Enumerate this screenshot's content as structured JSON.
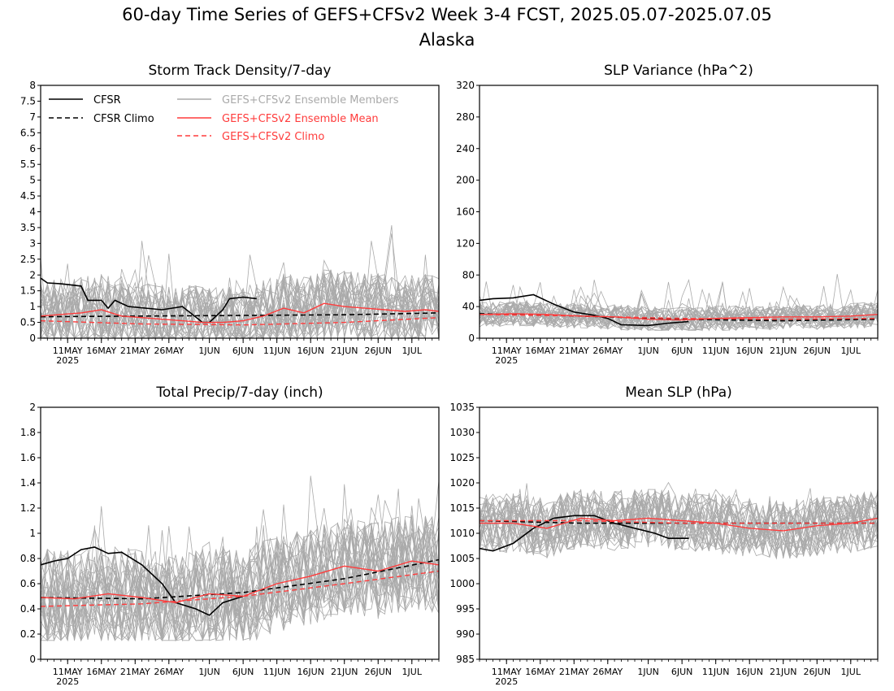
{
  "figure": {
    "title_line1": "60-day Time Series of GEFS+CFSv2 Week 3-4 FCST, 2025.05.07-2025.07.05",
    "title_line2": "Alaska"
  },
  "legend": {
    "cfsr": "CFSR",
    "cfsr_climo": "CFSR Climo",
    "members": "GEFS+CFSv2 Ensemble Members",
    "mean": "GEFS+CFSv2 Ensemble Mean",
    "climo": "GEFS+CFSv2 Climo"
  },
  "colors": {
    "cfsr": "#000000",
    "members": "#aaaaaa",
    "mean": "#ff3c3c",
    "climo": "#ff3c3c"
  },
  "x_axis": {
    "start_date": "2025-05-07",
    "end_date": "2025-07-05",
    "tick_labels": [
      "11MAY",
      "16MAY",
      "21MAY",
      "26MAY",
      "1JUN",
      "6JUN",
      "11JUN",
      "16JUN",
      "21JUN",
      "26JUN",
      "1JUL"
    ],
    "tick_dates": [
      "2025-05-11",
      "2025-05-16",
      "2025-05-21",
      "2025-05-26",
      "2025-06-01",
      "2025-06-06",
      "2025-06-11",
      "2025-06-16",
      "2025-06-21",
      "2025-06-26",
      "2025-07-01"
    ],
    "year_label": "2025"
  },
  "chart_data": [
    {
      "type": "line",
      "title": "Storm Track Density/7-day",
      "ylim": [
        0,
        8
      ],
      "yticks": [
        0,
        0.5,
        1,
        1.5,
        2,
        2.5,
        3,
        3.5,
        4,
        4.5,
        5,
        5.5,
        6,
        6.5,
        7,
        7.5,
        8
      ],
      "members_envelope": {
        "low": 0.0,
        "high_typical": 2.5,
        "peak": 4.3
      },
      "series": [
        {
          "name": "CFSR",
          "x": [
            "2025-05-07",
            "2025-05-08",
            "2025-05-10",
            "2025-05-13",
            "2025-05-14",
            "2025-05-16",
            "2025-05-17",
            "2025-05-18",
            "2025-05-20",
            "2025-05-25",
            "2025-05-28",
            "2025-05-31",
            "2025-06-01",
            "2025-06-03",
            "2025-06-04",
            "2025-06-06",
            "2025-06-08"
          ],
          "values": [
            1.9,
            1.75,
            1.72,
            1.65,
            1.2,
            1.2,
            0.95,
            1.2,
            1.0,
            0.9,
            1.0,
            0.5,
            0.5,
            0.9,
            1.25,
            1.3,
            1.25
          ]
        },
        {
          "name": "CFSR Climo",
          "x": [
            "2025-05-07",
            "2025-05-22",
            "2025-06-06",
            "2025-06-21",
            "2025-07-05"
          ],
          "values": [
            0.68,
            0.7,
            0.72,
            0.74,
            0.8
          ]
        },
        {
          "name": "GEFS+CFSv2 Ensemble Mean",
          "x": [
            "2025-05-07",
            "2025-05-10",
            "2025-05-13",
            "2025-05-16",
            "2025-05-19",
            "2025-05-22",
            "2025-05-25",
            "2025-05-28",
            "2025-05-31",
            "2025-06-03",
            "2025-06-06",
            "2025-06-09",
            "2025-06-12",
            "2025-06-15",
            "2025-06-18",
            "2025-06-21",
            "2025-06-24",
            "2025-06-27",
            "2025-06-30",
            "2025-07-03",
            "2025-07-05"
          ],
          "values": [
            0.7,
            0.75,
            0.8,
            0.9,
            0.7,
            0.65,
            0.6,
            0.55,
            0.5,
            0.5,
            0.55,
            0.7,
            0.95,
            0.8,
            1.1,
            1.0,
            0.95,
            0.9,
            0.85,
            0.9,
            0.85
          ]
        },
        {
          "name": "GEFS+CFSv2 Climo",
          "x": [
            "2025-05-07",
            "2025-05-22",
            "2025-06-06",
            "2025-06-21",
            "2025-07-05"
          ],
          "values": [
            0.55,
            0.45,
            0.42,
            0.5,
            0.65
          ]
        }
      ]
    },
    {
      "type": "line",
      "title": "SLP Variance (hPa^2)",
      "ylim": [
        0,
        320
      ],
      "yticks": [
        0,
        40,
        80,
        120,
        160,
        200,
        240,
        280,
        320
      ],
      "members_envelope": {
        "low": 10,
        "high_typical": 45,
        "peak": 85
      },
      "series": [
        {
          "name": "CFSR",
          "x": [
            "2025-05-07",
            "2025-05-09",
            "2025-05-12",
            "2025-05-15",
            "2025-05-18",
            "2025-05-21",
            "2025-05-24",
            "2025-05-26",
            "2025-05-28",
            "2025-06-01",
            "2025-06-04",
            "2025-06-07"
          ],
          "values": [
            48,
            50,
            51,
            55,
            43,
            33,
            29,
            25,
            17,
            16,
            19,
            21
          ]
        },
        {
          "name": "CFSR Climo",
          "x": [
            "2025-05-07",
            "2025-05-22",
            "2025-06-06",
            "2025-06-21",
            "2025-07-05"
          ],
          "values": [
            31,
            28,
            24,
            22,
            24
          ]
        },
        {
          "name": "GEFS+CFSv2 Ensemble Mean",
          "x": [
            "2025-05-07",
            "2025-05-12",
            "2025-05-17",
            "2025-05-22",
            "2025-05-27",
            "2025-06-01",
            "2025-06-06",
            "2025-06-11",
            "2025-06-16",
            "2025-06-21",
            "2025-06-26",
            "2025-07-01",
            "2025-07-05"
          ],
          "values": [
            30,
            31,
            30,
            28,
            27,
            24,
            23,
            25,
            26,
            27,
            27,
            28,
            30
          ]
        },
        {
          "name": "GEFS+CFSv2 Climo",
          "x": [
            "2025-05-07",
            "2025-05-22",
            "2025-06-06",
            "2025-06-21",
            "2025-07-05"
          ],
          "values": [
            30,
            28,
            25,
            24,
            25
          ]
        }
      ]
    },
    {
      "type": "line",
      "title": "Total Precip/7-day (inch)",
      "ylim": [
        0,
        2
      ],
      "yticks": [
        0,
        0.2,
        0.4,
        0.6,
        0.8,
        1,
        1.2,
        1.4,
        1.6,
        1.8,
        2
      ],
      "members_envelope": {
        "low": 0.15,
        "high_typical": 1.0,
        "peak": 1.5
      },
      "series": [
        {
          "name": "CFSR",
          "x": [
            "2025-05-07",
            "2025-05-09",
            "2025-05-11",
            "2025-05-13",
            "2025-05-15",
            "2025-05-17",
            "2025-05-19",
            "2025-05-22",
            "2025-05-25",
            "2025-05-27",
            "2025-05-30",
            "2025-06-01",
            "2025-06-03",
            "2025-06-06"
          ],
          "values": [
            0.75,
            0.78,
            0.8,
            0.87,
            0.89,
            0.84,
            0.85,
            0.75,
            0.6,
            0.45,
            0.4,
            0.35,
            0.45,
            0.5
          ]
        },
        {
          "name": "CFSR Climo",
          "x": [
            "2025-05-07",
            "2025-05-22",
            "2025-06-06",
            "2025-06-21",
            "2025-07-05"
          ],
          "values": [
            0.49,
            0.48,
            0.53,
            0.64,
            0.79
          ]
        },
        {
          "name": "GEFS+CFSv2 Ensemble Mean",
          "x": [
            "2025-05-07",
            "2025-05-12",
            "2025-05-17",
            "2025-05-22",
            "2025-05-27",
            "2025-06-01",
            "2025-06-06",
            "2025-06-11",
            "2025-06-16",
            "2025-06-21",
            "2025-06-26",
            "2025-07-01",
            "2025-07-05"
          ],
          "values": [
            0.49,
            0.48,
            0.52,
            0.49,
            0.45,
            0.52,
            0.5,
            0.6,
            0.66,
            0.74,
            0.7,
            0.78,
            0.75
          ]
        },
        {
          "name": "GEFS+CFSv2 Climo",
          "x": [
            "2025-05-07",
            "2025-05-22",
            "2025-06-06",
            "2025-06-21",
            "2025-07-05"
          ],
          "values": [
            0.42,
            0.44,
            0.5,
            0.6,
            0.7
          ]
        }
      ]
    },
    {
      "type": "line",
      "title": "Mean SLP (hPa)",
      "ylim": [
        985,
        1035
      ],
      "yticks": [
        985,
        990,
        995,
        1000,
        1005,
        1010,
        1015,
        1020,
        1025,
        1030,
        1035
      ],
      "members_envelope": {
        "low": 1005,
        "high_typical": 1018,
        "peak": 1021
      },
      "series": [
        {
          "name": "CFSR",
          "x": [
            "2025-05-07",
            "2025-05-09",
            "2025-05-12",
            "2025-05-15",
            "2025-05-18",
            "2025-05-21",
            "2025-05-24",
            "2025-05-27",
            "2025-05-30",
            "2025-06-02",
            "2025-06-04",
            "2025-06-07"
          ],
          "values": [
            1007,
            1006.5,
            1008,
            1011,
            1013,
            1013.5,
            1013.5,
            1012,
            1011,
            1010,
            1009,
            1009
          ]
        },
        {
          "name": "CFSR Climo",
          "x": [
            "2025-05-07",
            "2025-05-22",
            "2025-06-06",
            "2025-06-21",
            "2025-07-05"
          ],
          "values": [
            1012.5,
            1012,
            1012,
            1012,
            1012
          ]
        },
        {
          "name": "GEFS+CFSv2 Ensemble Mean",
          "x": [
            "2025-05-07",
            "2025-05-12",
            "2025-05-17",
            "2025-05-22",
            "2025-05-27",
            "2025-06-01",
            "2025-06-06",
            "2025-06-11",
            "2025-06-16",
            "2025-06-21",
            "2025-06-26",
            "2025-07-01",
            "2025-07-05"
          ],
          "values": [
            1012,
            1012,
            1011,
            1013,
            1012.5,
            1013,
            1012.5,
            1012,
            1011,
            1010.5,
            1011.5,
            1012,
            1013
          ]
        },
        {
          "name": "GEFS+CFSv2 Climo",
          "x": [
            "2025-05-07",
            "2025-05-22",
            "2025-06-06",
            "2025-06-21",
            "2025-07-05"
          ],
          "values": [
            1012.5,
            1012.5,
            1012,
            1012,
            1012
          ]
        }
      ]
    }
  ]
}
